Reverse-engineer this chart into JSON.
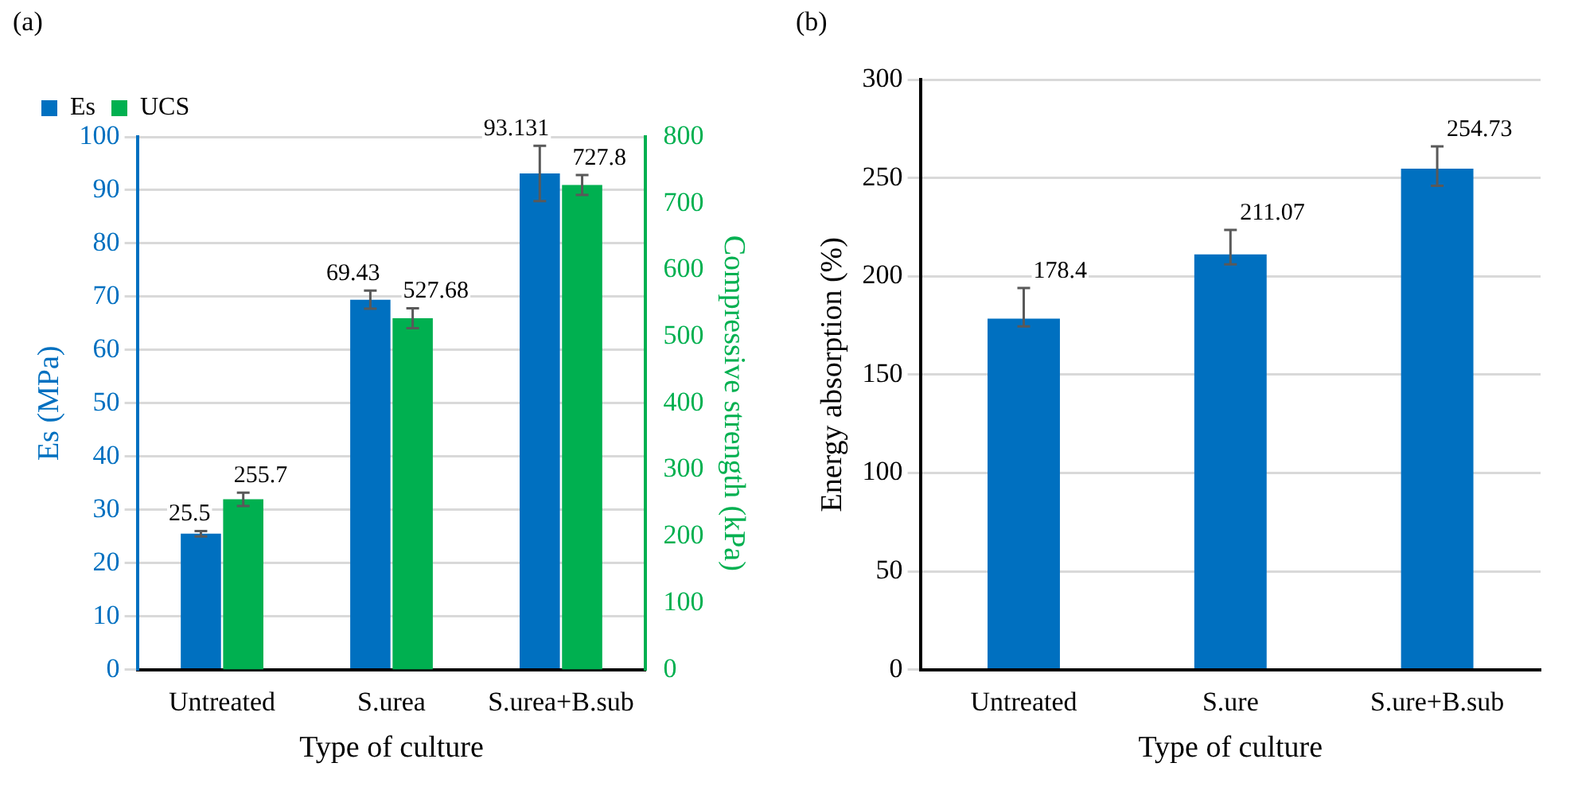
{
  "chart_data": [
    {
      "type": "bar",
      "categories": [
        "Untreated",
        "S.urea",
        "S.urea+B.sub"
      ],
      "xlabel": "Type of culture",
      "ylabel": "Es (MPa)",
      "y2label": "Compressive strength (kPa)",
      "annotations": [
        "(a)"
      ],
      "series": [
        {
          "name": "Es",
          "color": "#0070c0",
          "values": [
            25.5,
            69.43,
            93.131
          ],
          "errors": [
            0.5,
            1.7,
            5.2
          ]
        },
        {
          "name": "UCS",
          "color": "#00b050",
          "values": [
            255.7,
            527.68,
            727.8
          ],
          "errors": [
            10,
            15,
            15
          ],
          "axis": "y2"
        }
      ],
      "ylim": [
        0,
        100
      ],
      "yticks": [
        0,
        10,
        20,
        30,
        40,
        50,
        60,
        70,
        80,
        90,
        100
      ],
      "y2lim": [
        0,
        800
      ],
      "y2ticks": [
        0,
        100,
        200,
        300,
        400,
        500,
        600,
        700,
        800
      ],
      "grid": "y",
      "legend": "top left",
      "data_labels": true
    },
    {
      "type": "bar",
      "categories": [
        "Untreated",
        "S.ure",
        "S.ure+B.sub"
      ],
      "xlabel": "Type of culture",
      "ylabel": "Energy absorption (%)",
      "annotations": [
        "(b)"
      ],
      "values": [
        178.4,
        211.07,
        254.73
      ],
      "errors": [
        [
          174.5,
          194
        ],
        [
          206,
          223.5
        ],
        [
          246,
          266
        ]
      ],
      "color": "#0070c0",
      "ylim": [
        0,
        300
      ],
      "yticks": [
        0,
        50,
        100,
        150,
        200,
        250,
        300
      ],
      "grid": "y",
      "data_labels": true
    }
  ]
}
